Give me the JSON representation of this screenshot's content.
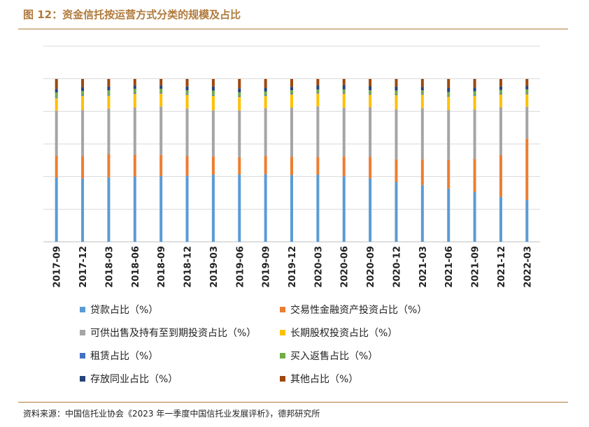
{
  "figure": {
    "title": "图 12：资金信托按运营方式分类的规模及占比",
    "source": "资料来源：中国信托业协会《2023 年一季度中国信托业发展评析》，德邦研究所"
  },
  "chart_data": {
    "type": "bar",
    "stacked": true,
    "ylim": [
      0,
      100
    ],
    "grid": true,
    "legend_position": "bottom",
    "categories": [
      "2017-09",
      "2017-12",
      "2018-03",
      "2018-06",
      "2018-09",
      "2018-12",
      "2019-03",
      "2019-06",
      "2019-09",
      "2019-12",
      "2020-03",
      "2020-06",
      "2020-09",
      "2020-12",
      "2021-03",
      "2021-06",
      "2021-09",
      "2021-12",
      "2022-03"
    ],
    "series": [
      {
        "name": "贷款占比（%）",
        "color": "#5b9bd5",
        "values": [
          39.5,
          38.9,
          39.6,
          40.1,
          40.4,
          40.6,
          41.2,
          41.4,
          41.5,
          41.0,
          41.2,
          40.2,
          39.0,
          36.7,
          34.9,
          32.7,
          30.5,
          27.6,
          25.7
        ]
      },
      {
        "name": "交易性金融资产投资占比（%）",
        "color": "#ed7d31",
        "values": [
          13.4,
          13.7,
          14.3,
          13.3,
          12.9,
          12.0,
          11.2,
          10.6,
          11.1,
          11.3,
          11.0,
          12.2,
          13.3,
          14.0,
          15.7,
          17.6,
          20.4,
          25.6,
          37.7
        ]
      },
      {
        "name": "可供出售及持有至到期投资占比（%）",
        "color": "#a5a5a5",
        "values": [
          27.6,
          28.3,
          27.9,
          29.0,
          29.8,
          29.2,
          28.4,
          28.7,
          29.4,
          30.1,
          31.0,
          29.9,
          30.3,
          30.7,
          31.5,
          30.6,
          30.4,
          29.4,
          19.5
        ]
      },
      {
        "name": "长期股权投资占比（%）",
        "color": "#ffc000",
        "values": [
          7.8,
          8.7,
          8.0,
          8.5,
          8.0,
          8.4,
          8.9,
          8.3,
          7.6,
          8.1,
          7.9,
          8.7,
          7.8,
          8.7,
          8.3,
          8.2,
          8.3,
          7.9,
          7.7
        ]
      },
      {
        "name": "租赁占比（%）",
        "color": "#4472c4",
        "values": [
          0.5,
          0.5,
          0.5,
          0.5,
          0.5,
          0.5,
          0.5,
          0.5,
          0.5,
          0.5,
          0.5,
          0.5,
          0.5,
          0.5,
          0.5,
          0.5,
          0.5,
          0.5,
          0.5
        ]
      },
      {
        "name": "买入返售占比（%）",
        "color": "#70ad47",
        "values": [
          2.9,
          2.5,
          2.7,
          2.6,
          2.4,
          2.3,
          2.6,
          2.3,
          2.2,
          2.1,
          1.9,
          2.1,
          2.2,
          2.3,
          2.1,
          2.4,
          2.3,
          2.2,
          2.5
        ]
      },
      {
        "name": "存放同业占比（%）",
        "color": "#264478",
        "values": [
          2.2,
          2.4,
          2.3,
          2.0,
          2.0,
          2.4,
          2.6,
          2.5,
          2.3,
          2.1,
          2.6,
          2.6,
          2.4,
          2.4,
          2.2,
          2.6,
          2.4,
          2.2,
          2.1
        ]
      },
      {
        "name": "其他占比（%）",
        "color": "#9e480e",
        "values": [
          6.1,
          5.0,
          4.7,
          4.0,
          4.0,
          4.6,
          4.6,
          5.7,
          5.4,
          4.8,
          3.9,
          3.8,
          4.5,
          4.7,
          4.8,
          5.4,
          5.2,
          4.6,
          4.3
        ]
      }
    ]
  }
}
